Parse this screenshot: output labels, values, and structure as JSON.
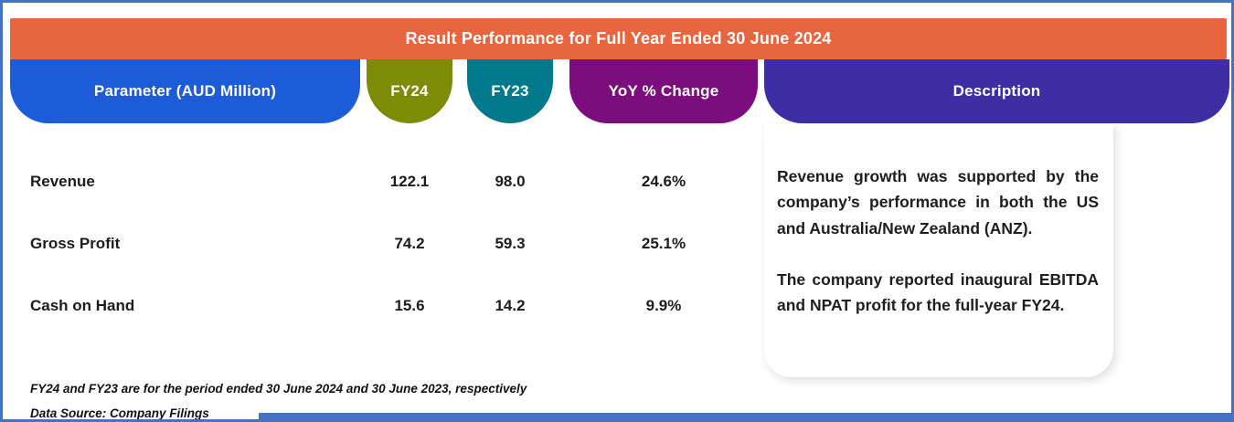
{
  "chart_data": {
    "type": "table",
    "title": "Result Performance for Full Year Ended 30 June 2024",
    "columns": [
      "Parameter (AUD Million)",
      "FY24",
      "FY23",
      "YoY % Change",
      "Description"
    ],
    "rows": [
      {
        "parameter": "Revenue",
        "fy24": 122.1,
        "fy23": 98.0,
        "yoy_pct_change": "24.6%"
      },
      {
        "parameter": "Gross Profit",
        "fy24": 74.2,
        "fy23": 59.3,
        "yoy_pct_change": "25.1%"
      },
      {
        "parameter": "Cash on Hand",
        "fy24": 15.6,
        "fy23": 14.2,
        "yoy_pct_change": "9.9%"
      }
    ],
    "description_notes": [
      "Revenue growth was supported by the company’s performance in both the US and Australia/New Zealand (ANZ).",
      "The company reported inaugural EBITDA and NPAT profit for the full-year FY24."
    ],
    "footnotes": [
      "FY24 and FY23 are for the period ended 30 June 2024 and 30 June 2023, respectively",
      "Data Source: Company Filings"
    ]
  },
  "banner": {
    "title": "Result Performance for Full Year Ended 30 June 2024"
  },
  "headers": {
    "parameter": "Parameter (AUD Million)",
    "fy24": "FY24",
    "fy23": "FY23",
    "yoy": "YoY % Change",
    "description": "Description"
  },
  "rows": [
    {
      "parameter": "Revenue",
      "fy24": "122.1",
      "fy23": "98.0",
      "yoy": "24.6%"
    },
    {
      "parameter": "Gross Profit",
      "fy24": "74.2",
      "fy23": "59.3",
      "yoy": "25.1%"
    },
    {
      "parameter": "Cash on Hand",
      "fy24": "15.6",
      "fy23": "14.2",
      "yoy": "9.9%"
    }
  ],
  "description": {
    "paragraph1": "Revenue growth was supported by the company’s performance in both the US and Australia/New Zealand (ANZ).",
    "paragraph2": "The company reported inaugural EBITDA and NPAT profit for the full-year FY24."
  },
  "footnotes": {
    "line1": "FY24 and FY23 are for the period ended 30 June 2024 and 30 June 2023, respectively",
    "line2": "Data Source: Company Filings"
  },
  "colors": {
    "banner_orange": "#E96540",
    "parameter_blue": "#1D5CD9",
    "fy24_olive": "#7E8B04",
    "fy23_teal": "#00798C",
    "yoy_purple": "#7C0D7E",
    "description_indigo": "#3D2EA5",
    "border_blue": "#4472C4"
  }
}
